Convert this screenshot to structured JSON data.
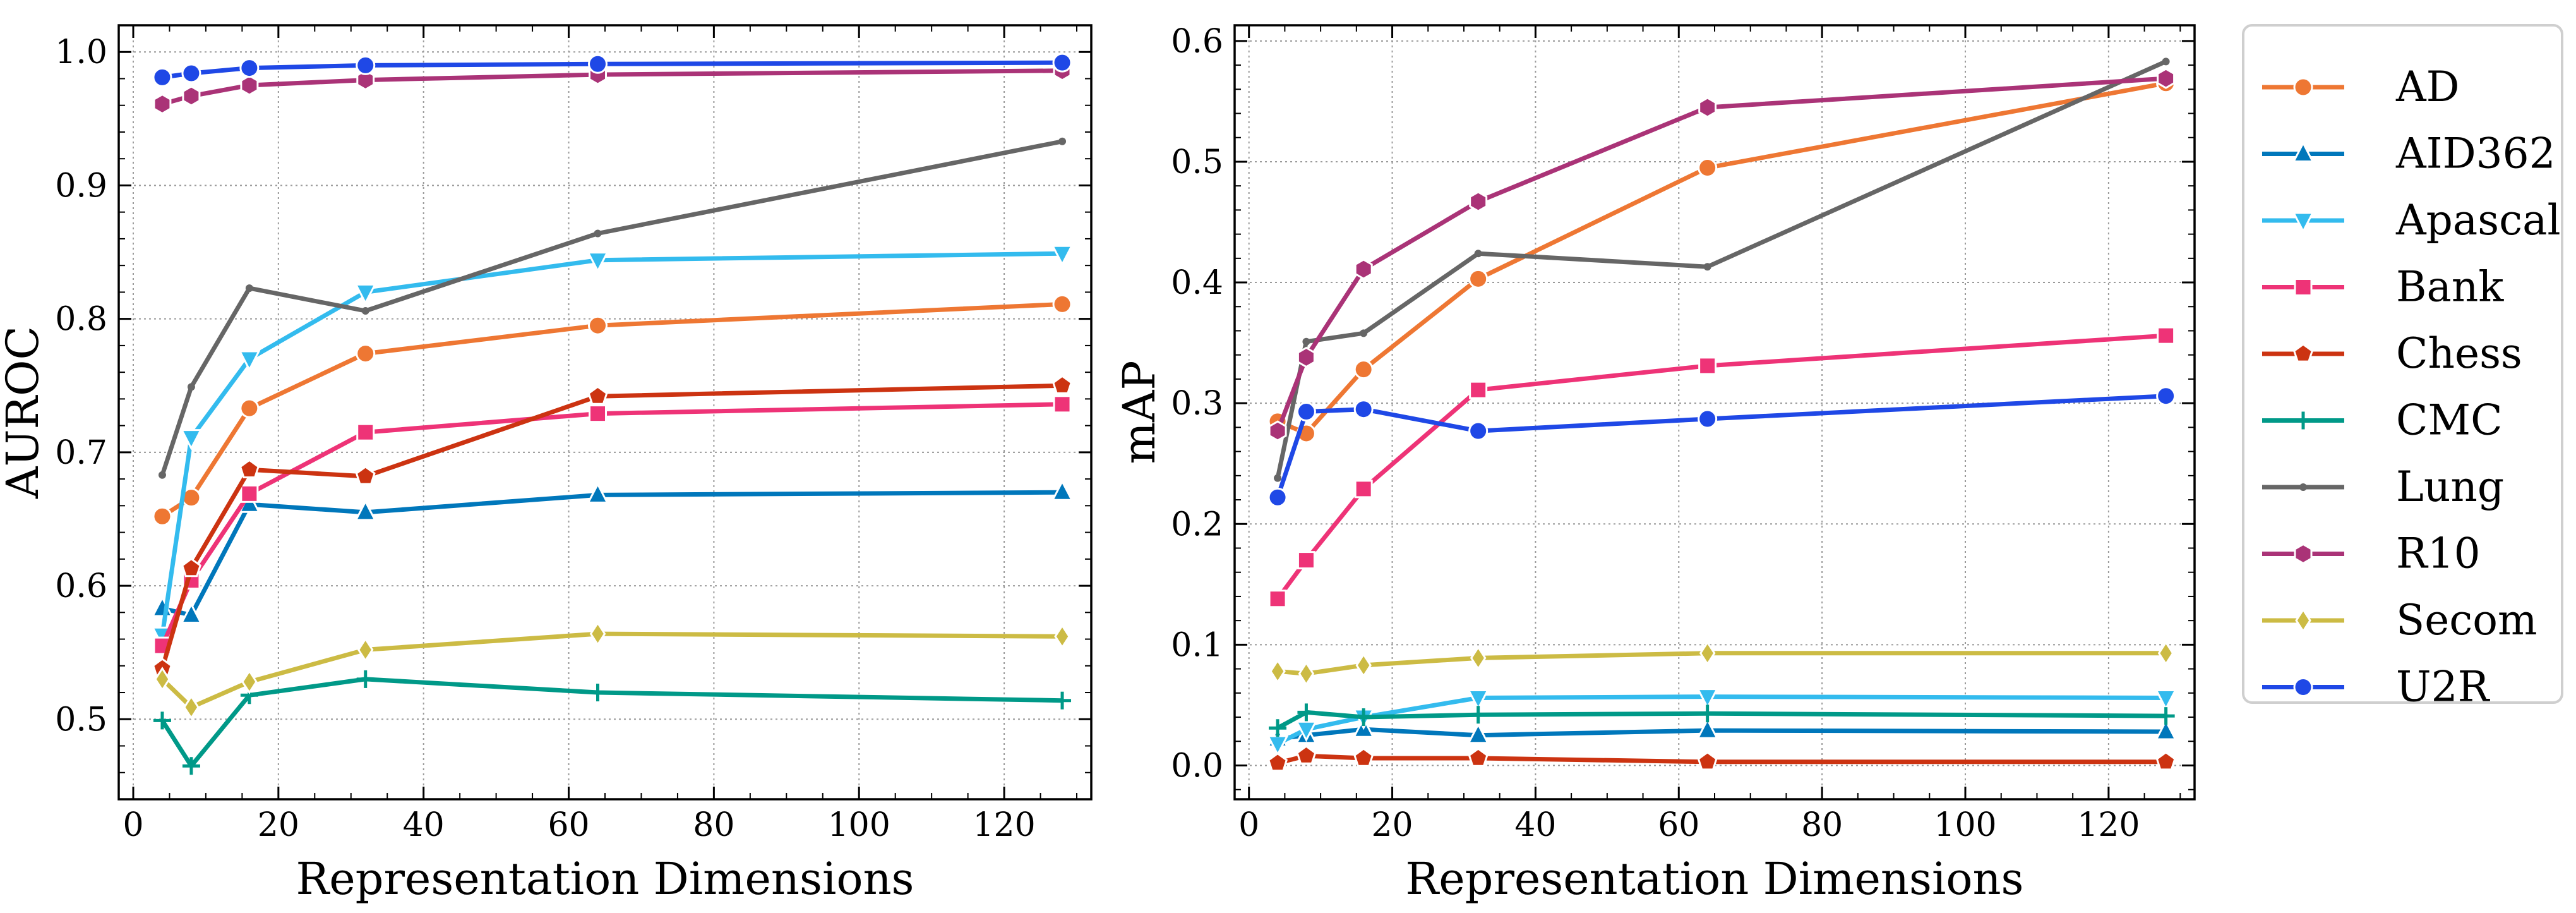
{
  "chart_data": [
    {
      "type": "line",
      "title": "",
      "xlabel": "Representation Dimensions",
      "ylabel": "AUROC",
      "xlim": [
        -2,
        132
      ],
      "ylim": [
        0.44,
        1.02
      ],
      "xticks": [
        0,
        20,
        40,
        60,
        80,
        100,
        120
      ],
      "yticks": [
        0.5,
        0.6,
        0.7,
        0.8,
        0.9,
        1.0
      ],
      "ytick_labels": [
        "0.5",
        "0.6",
        "0.7",
        "0.8",
        "0.9",
        "1.0"
      ],
      "grid": true,
      "x": [
        4,
        8,
        16,
        32,
        64,
        128
      ],
      "series": [
        {
          "name": "AD",
          "color": "#ee7733",
          "marker": "circle",
          "values": [
            0.652,
            0.666,
            0.733,
            0.774,
            0.795,
            0.811
          ]
        },
        {
          "name": "AID362",
          "color": "#0077bb",
          "marker": "triangle-up",
          "values": [
            0.583,
            0.578,
            0.661,
            0.655,
            0.668,
            0.67
          ]
        },
        {
          "name": "Apascal",
          "color": "#33bbee",
          "marker": "triangle-down",
          "values": [
            0.563,
            0.711,
            0.77,
            0.82,
            0.844,
            0.849
          ]
        },
        {
          "name": "Bank",
          "color": "#ee3377",
          "marker": "square",
          "values": [
            0.555,
            0.604,
            0.669,
            0.715,
            0.729,
            0.736
          ]
        },
        {
          "name": "Chess",
          "color": "#cc3311",
          "marker": "pentagon",
          "values": [
            0.538,
            0.613,
            0.687,
            0.682,
            0.742,
            0.75
          ]
        },
        {
          "name": "CMC",
          "color": "#009988",
          "marker": "plus",
          "values": [
            0.499,
            0.465,
            0.518,
            0.53,
            0.52,
            0.514
          ]
        },
        {
          "name": "Lung",
          "color": "#666666",
          "marker": "dot",
          "values": [
            0.683,
            0.749,
            0.823,
            0.806,
            0.864,
            0.933
          ]
        },
        {
          "name": "R10",
          "color": "#aa3377",
          "marker": "hexagon",
          "values": [
            0.961,
            0.967,
            0.975,
            0.979,
            0.983,
            0.986
          ]
        },
        {
          "name": "Secom",
          "color": "#ccbb44",
          "marker": "diamond",
          "values": [
            0.53,
            0.509,
            0.528,
            0.552,
            0.564,
            0.562
          ]
        },
        {
          "name": "U2R",
          "color": "#1f48e6",
          "marker": "circle",
          "values": [
            0.981,
            0.984,
            0.988,
            0.99,
            0.991,
            0.992
          ]
        }
      ]
    },
    {
      "type": "line",
      "title": "",
      "xlabel": "Representation Dimensions",
      "ylabel": "mAP",
      "xlim": [
        -2,
        132
      ],
      "ylim": [
        -0.028,
        0.613
      ],
      "xticks": [
        0,
        20,
        40,
        60,
        80,
        100,
        120
      ],
      "yticks": [
        0.0,
        0.1,
        0.2,
        0.3,
        0.4,
        0.5,
        0.6
      ],
      "ytick_labels": [
        "0.0",
        "0.1",
        "0.2",
        "0.3",
        "0.4",
        "0.5",
        "0.6"
      ],
      "grid": true,
      "x": [
        4,
        8,
        16,
        32,
        64,
        128
      ],
      "series": [
        {
          "name": "AD",
          "color": "#ee7733",
          "marker": "circle",
          "values": [
            0.285,
            0.275,
            0.328,
            0.403,
            0.495,
            0.565
          ]
        },
        {
          "name": "AID362",
          "color": "#0077bb",
          "marker": "triangle-up",
          "values": [
            0.022,
            0.025,
            0.03,
            0.025,
            0.029,
            0.028
          ]
        },
        {
          "name": "Apascal",
          "color": "#33bbee",
          "marker": "triangle-down",
          "values": [
            0.018,
            0.03,
            0.04,
            0.056,
            0.057,
            0.056
          ]
        },
        {
          "name": "Bank",
          "color": "#ee3377",
          "marker": "square",
          "values": [
            0.138,
            0.17,
            0.229,
            0.311,
            0.331,
            0.356
          ]
        },
        {
          "name": "Chess",
          "color": "#cc3311",
          "marker": "pentagon",
          "values": [
            0.002,
            0.008,
            0.006,
            0.006,
            0.003,
            0.003
          ]
        },
        {
          "name": "CMC",
          "color": "#009988",
          "marker": "plus",
          "values": [
            0.031,
            0.044,
            0.04,
            0.042,
            0.043,
            0.041
          ]
        },
        {
          "name": "Lung",
          "color": "#666666",
          "marker": "dot",
          "values": [
            0.238,
            0.351,
            0.358,
            0.424,
            0.413,
            0.583
          ]
        },
        {
          "name": "R10",
          "color": "#aa3377",
          "marker": "hexagon",
          "values": [
            0.277,
            0.338,
            0.411,
            0.467,
            0.545,
            0.569
          ]
        },
        {
          "name": "Secom",
          "color": "#ccbb44",
          "marker": "diamond",
          "values": [
            0.078,
            0.076,
            0.083,
            0.089,
            0.093,
            0.093
          ]
        },
        {
          "name": "U2R",
          "color": "#1f48e6",
          "marker": "circle",
          "values": [
            0.222,
            0.293,
            0.295,
            0.277,
            0.287,
            0.306
          ]
        }
      ]
    }
  ],
  "legend": {
    "placement": "right of figure",
    "items": [
      {
        "label": "AD",
        "color": "#ee7733",
        "marker": "circle"
      },
      {
        "label": "AID362",
        "color": "#0077bb",
        "marker": "triangle-up"
      },
      {
        "label": "Apascal",
        "color": "#33bbee",
        "marker": "triangle-down"
      },
      {
        "label": "Bank",
        "color": "#ee3377",
        "marker": "square"
      },
      {
        "label": "Chess",
        "color": "#cc3311",
        "marker": "pentagon"
      },
      {
        "label": "CMC",
        "color": "#009988",
        "marker": "plus"
      },
      {
        "label": "Lung",
        "color": "#666666",
        "marker": "dot"
      },
      {
        "label": "R10",
        "color": "#aa3377",
        "marker": "hexagon"
      },
      {
        "label": "Secom",
        "color": "#ccbb44",
        "marker": "diamond"
      },
      {
        "label": "U2R",
        "color": "#1f48e6",
        "marker": "circle"
      }
    ]
  }
}
